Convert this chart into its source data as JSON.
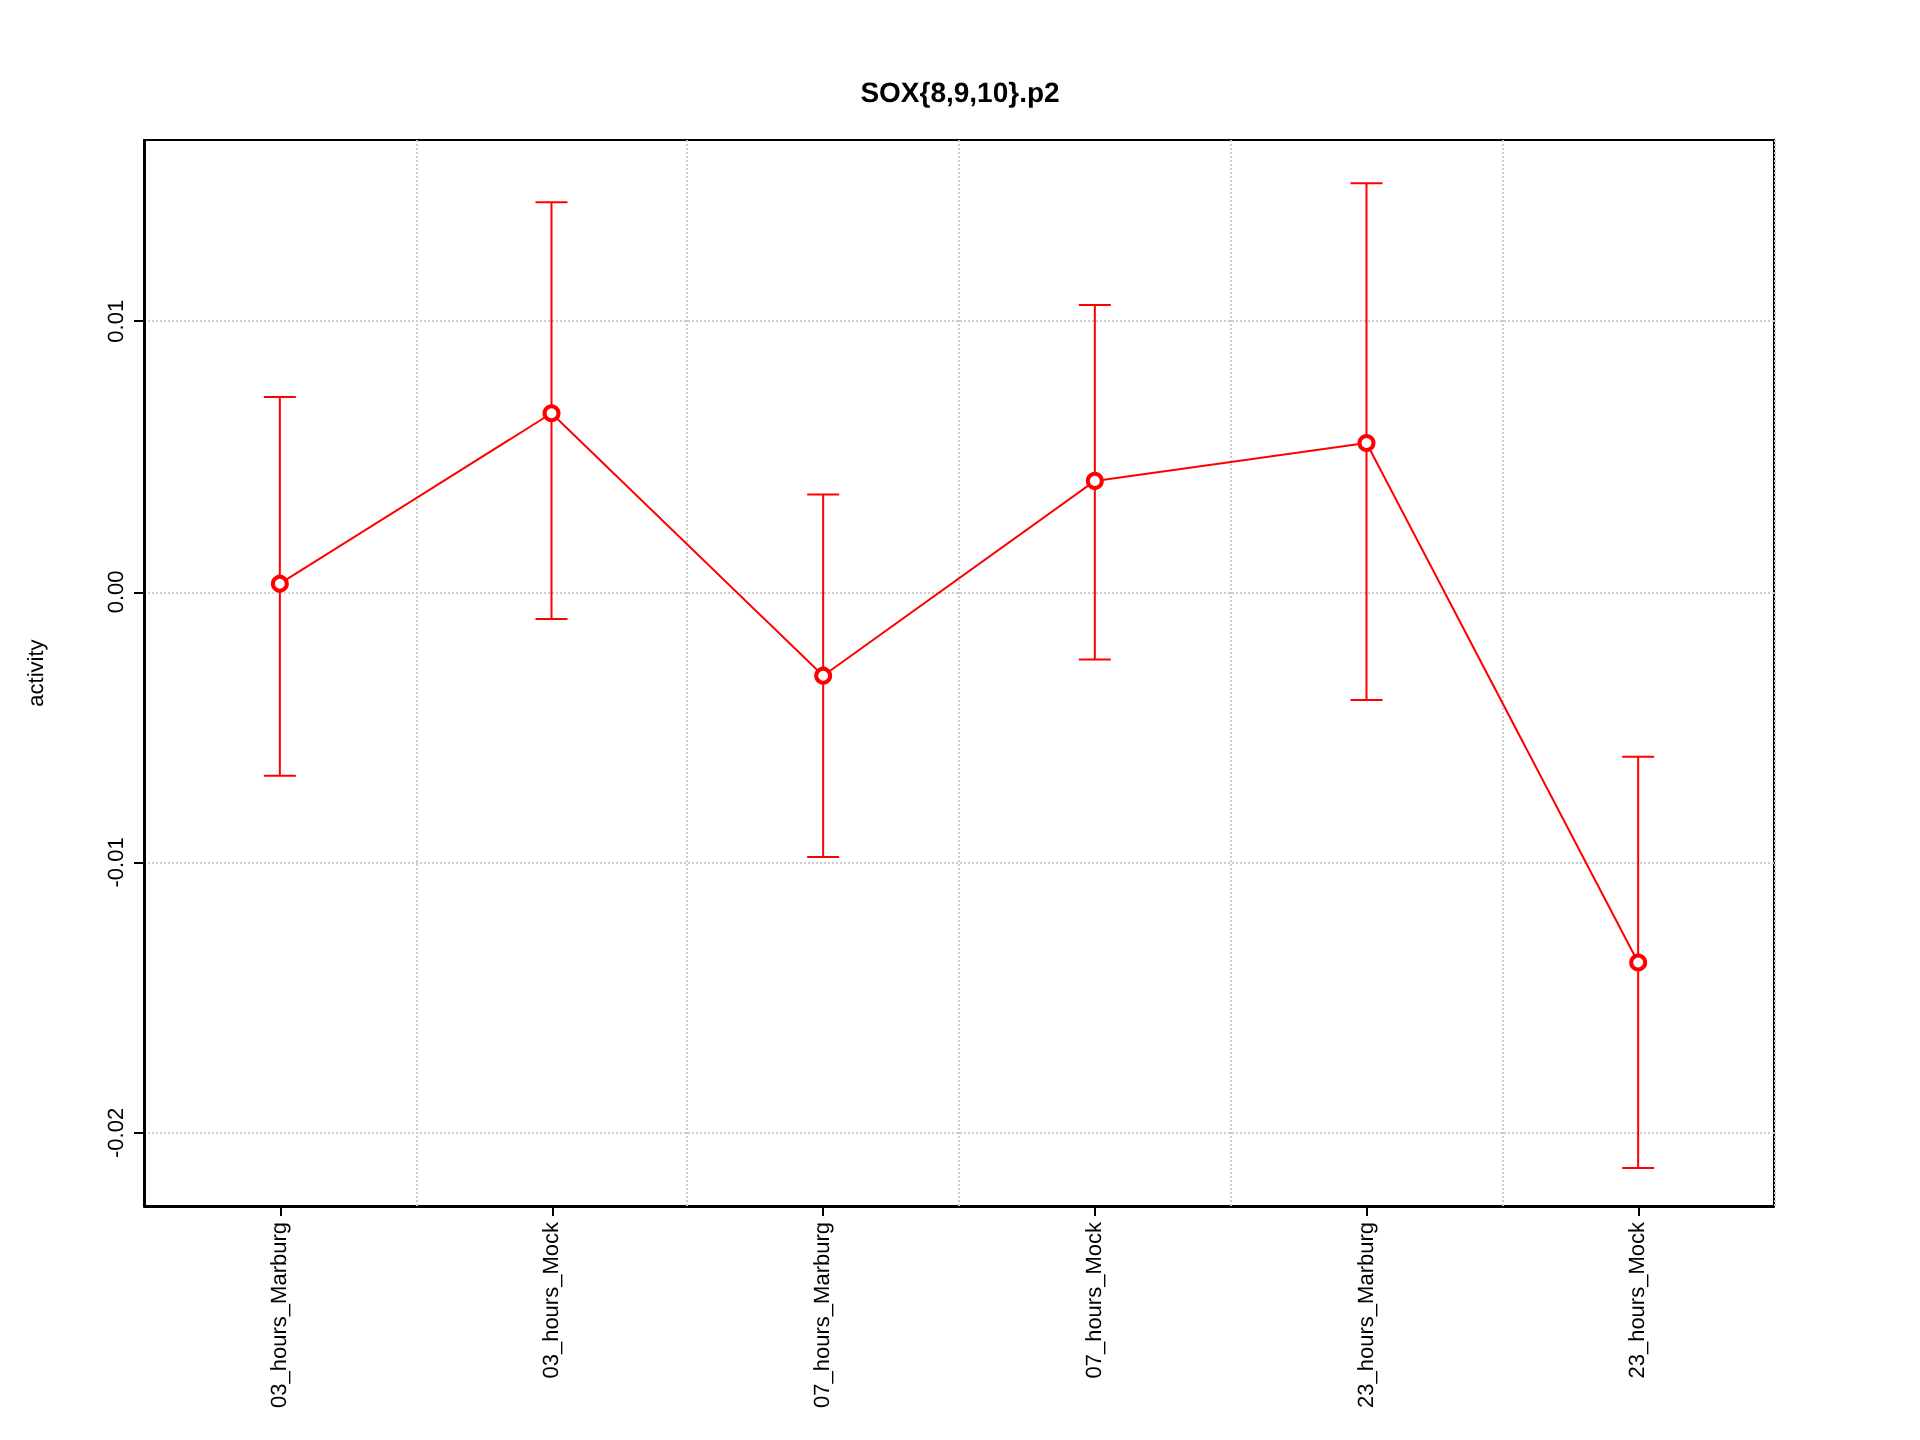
{
  "chart_data": {
    "type": "line",
    "title": "SOX{8,9,10}.p2",
    "ylabel": "activity",
    "categories": [
      "03_hours_Marburg",
      "03_hours_Mock",
      "07_hours_Marburg",
      "07_hours_Mock",
      "23_hours_Marburg",
      "23_hours_Mock"
    ],
    "series": [
      {
        "color": "#ff0000",
        "values": [
          0.0003,
          0.0066,
          -0.0031,
          0.0041,
          0.0055,
          -0.0137
        ],
        "errors": [
          [
            -0.0068,
            0.0072
          ],
          [
            -0.001,
            0.0144
          ],
          [
            -0.0098,
            0.0036
          ],
          [
            -0.0025,
            0.0106
          ],
          [
            -0.004,
            0.0151
          ],
          [
            -0.0213,
            -0.0061
          ]
        ]
      }
    ],
    "ylim": [
      -0.0227,
      0.0167
    ],
    "yticks": [
      -0.02,
      -0.01,
      {
        "value": 0,
        "label": "0.00"
      },
      0.01
    ],
    "grid": true,
    "marker": "circle",
    "line_style": "solid"
  }
}
